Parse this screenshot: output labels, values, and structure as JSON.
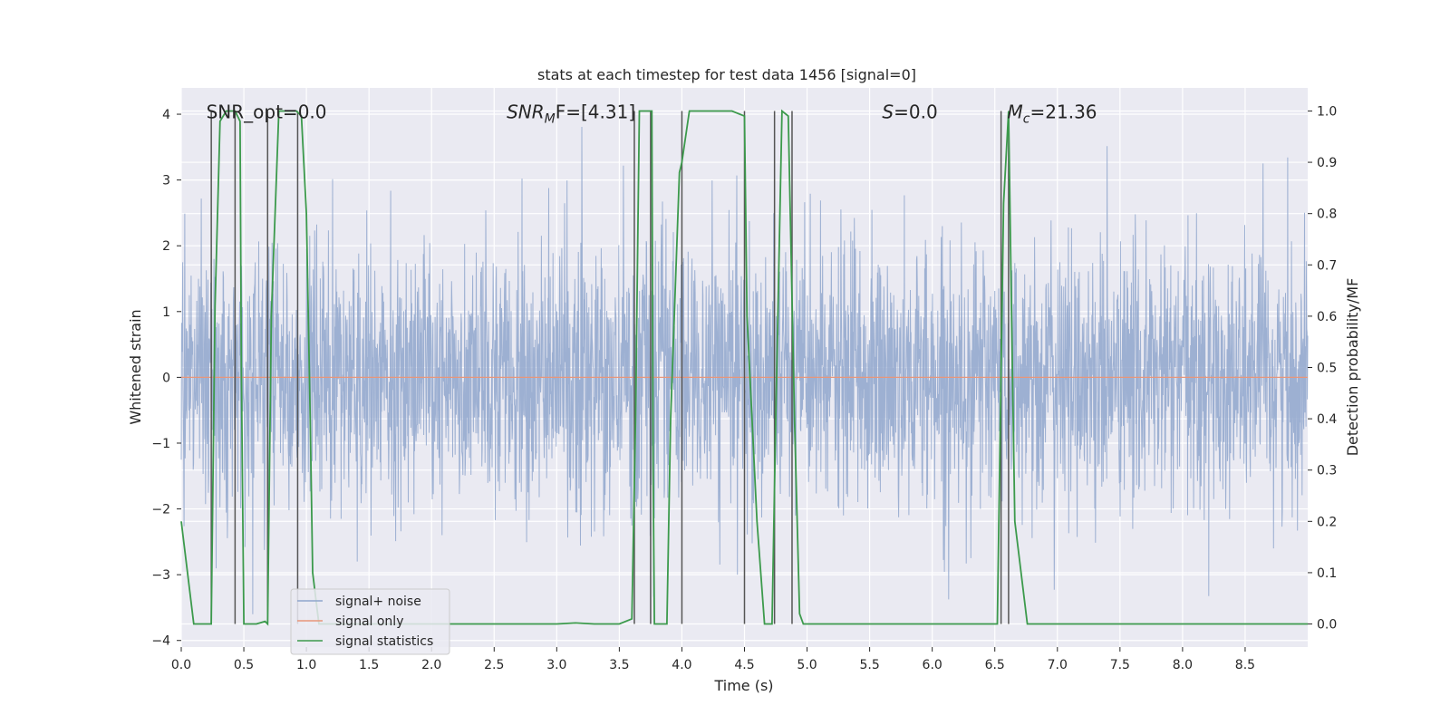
{
  "chart_data": {
    "type": "line",
    "title": "stats at each timestep for test data 1456 [signal=0]",
    "xlabel": "Time (s)",
    "ylabel": "Whitened strain",
    "ylabel_right": "Detection probability/MF",
    "xlim": [
      0,
      9.0
    ],
    "ylim": [
      -4.1,
      4.4
    ],
    "ylim_right": [
      -0.045,
      1.045
    ],
    "x_ticks": [
      0.0,
      0.5,
      1.0,
      1.5,
      2.0,
      2.5,
      3.0,
      3.5,
      4.0,
      4.5,
      5.0,
      5.5,
      6.0,
      6.5,
      7.0,
      7.5,
      8.0,
      8.5
    ],
    "x_tick_labels": [
      "0.0",
      "0.5",
      "1.0",
      "1.5",
      "2.0",
      "2.5",
      "3.0",
      "3.5",
      "4.0",
      "4.5",
      "5.0",
      "5.5",
      "6.0",
      "6.5",
      "7.0",
      "7.5",
      "8.0",
      "8.5"
    ],
    "y_ticks": [
      -4,
      -3,
      -2,
      -1,
      0,
      1,
      2,
      3,
      4
    ],
    "y_tick_labels": [
      "−4",
      "−3",
      "−2",
      "−1",
      "0",
      "1",
      "2",
      "3",
      "4"
    ],
    "y_right_ticks": [
      0.0,
      0.1,
      0.2,
      0.3,
      0.4,
      0.5,
      0.6,
      0.7,
      0.8,
      0.9,
      1.0
    ],
    "y_right_tick_labels": [
      "0.0",
      "0.1",
      "0.2",
      "0.3",
      "0.4",
      "0.5",
      "0.6",
      "0.7",
      "0.8",
      "0.9",
      "1.0"
    ],
    "grid": true,
    "legend_position": "lower-left",
    "annotations": [
      {
        "text": "SNR_opt=0.0",
        "x": 0.2
      },
      {
        "text": "SNRₘF=[4.31]",
        "x": 2.6,
        "html_main": "SNR",
        "html_sub": "M",
        "html_tail": "F=[4.31]",
        "italic": true
      },
      {
        "text": "S=0.0",
        "x": 5.6,
        "html_main": "S",
        "html_tail": "=0.0",
        "italic": true
      },
      {
        "text": "Mᶜ=21.36",
        "x": 6.6,
        "html_main": "M",
        "html_sub": "c",
        "html_tail": "=21.36",
        "italic": true
      }
    ],
    "annotation_y": 4.05,
    "series": [
      {
        "name": "signal+ noise",
        "color": "#8fa6cc",
        "kind": "noise",
        "amplitude": 1.0,
        "peak_max": 4.0,
        "peak_min": -3.6
      },
      {
        "name": "signal only",
        "color": "#e8967a",
        "kind": "flat",
        "value": 0.0
      },
      {
        "name": "signal statistics",
        "color": "#3c9a4c",
        "kind": "line",
        "axis": "right",
        "x": [
          0.0,
          0.05,
          0.1,
          0.24,
          0.27,
          0.31,
          0.36,
          0.43,
          0.47,
          0.48,
          0.5,
          0.6,
          0.67,
          0.69,
          0.72,
          0.78,
          0.85,
          0.92,
          0.96,
          1.0,
          1.03,
          1.05,
          1.1,
          1.2,
          1.3,
          2.0,
          3.0,
          3.15,
          3.3,
          3.5,
          3.6,
          3.63,
          3.66,
          3.7,
          3.76,
          3.77,
          3.78,
          3.82,
          3.88,
          3.91,
          3.98,
          4.0,
          4.06,
          4.2,
          4.4,
          4.5,
          4.52,
          4.6,
          4.66,
          4.72,
          4.75,
          4.8,
          4.85,
          4.9,
          4.94,
          4.97,
          5.0,
          5.2,
          6.0,
          6.52,
          6.57,
          6.61,
          6.64,
          6.66,
          6.71,
          6.76,
          6.8,
          7.0,
          8.0,
          9.0
        ],
        "y": [
          0.2,
          0.1,
          0.0,
          0.0,
          0.62,
          0.98,
          1.0,
          1.0,
          0.98,
          0.5,
          0.0,
          0.0,
          0.005,
          0.0,
          0.6,
          1.0,
          1.0,
          1.0,
          0.99,
          0.8,
          0.4,
          0.1,
          0.0,
          0.0,
          0.0,
          0.0,
          0.0,
          0.002,
          0.0,
          0.0,
          0.01,
          0.4,
          1.0,
          1.0,
          1.0,
          0.3,
          0.0,
          0.0,
          0.0,
          0.4,
          0.88,
          0.9,
          1.0,
          1.0,
          1.0,
          0.99,
          0.6,
          0.2,
          0.0,
          0.0,
          0.4,
          1.0,
          0.99,
          0.4,
          0.02,
          0.0,
          0.0,
          0.0,
          0.0,
          0.0,
          0.82,
          1.0,
          0.5,
          0.2,
          0.1,
          0.0,
          0.0,
          0.0,
          0.0,
          0.0
        ]
      }
    ],
    "vlines_x": [
      0.24,
      0.43,
      0.69,
      0.93,
      3.62,
      3.75,
      4.0,
      4.5,
      4.74,
      4.88,
      6.55,
      6.61
    ]
  }
}
